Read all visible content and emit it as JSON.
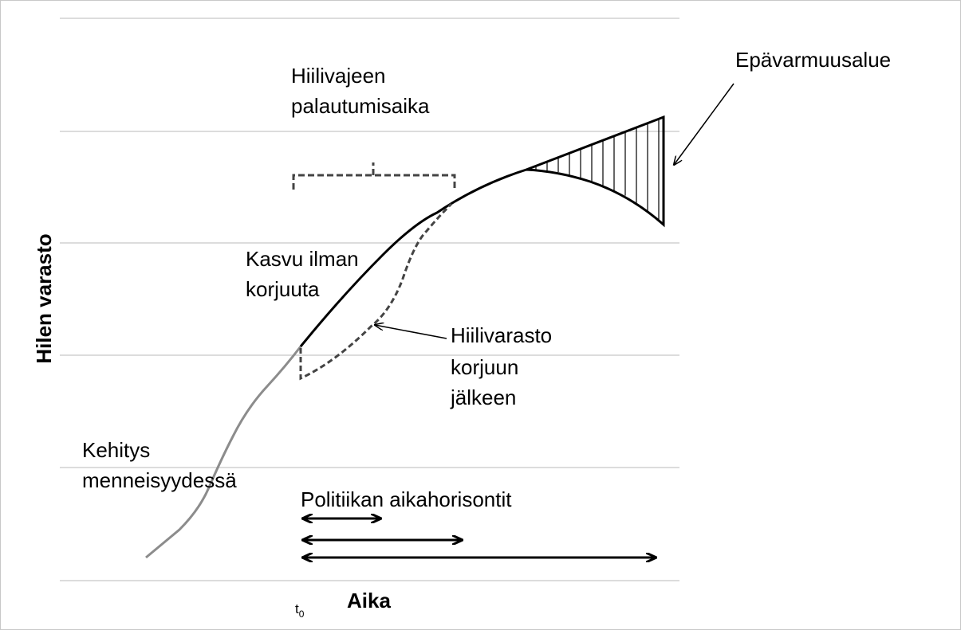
{
  "labels": {
    "title_line1": "Hiilivajeen",
    "title_line2": "palautumisaika",
    "uncertainty": "Epävarmuusalue",
    "growth_line1": "Kasvu ilman",
    "growth_line2": "korjuuta",
    "stock_line1": "Hiilivarasto",
    "stock_line2": "korjuun",
    "stock_line3": "jälkeen",
    "past_line1": "Kehitys",
    "past_line2": "menneisyydessä",
    "policy": "Politiikan aikahorisontit",
    "y_axis": "Hilen varasto",
    "x_axis": "Aika",
    "t0": {
      "t": "t",
      "sub": "0"
    }
  }
}
